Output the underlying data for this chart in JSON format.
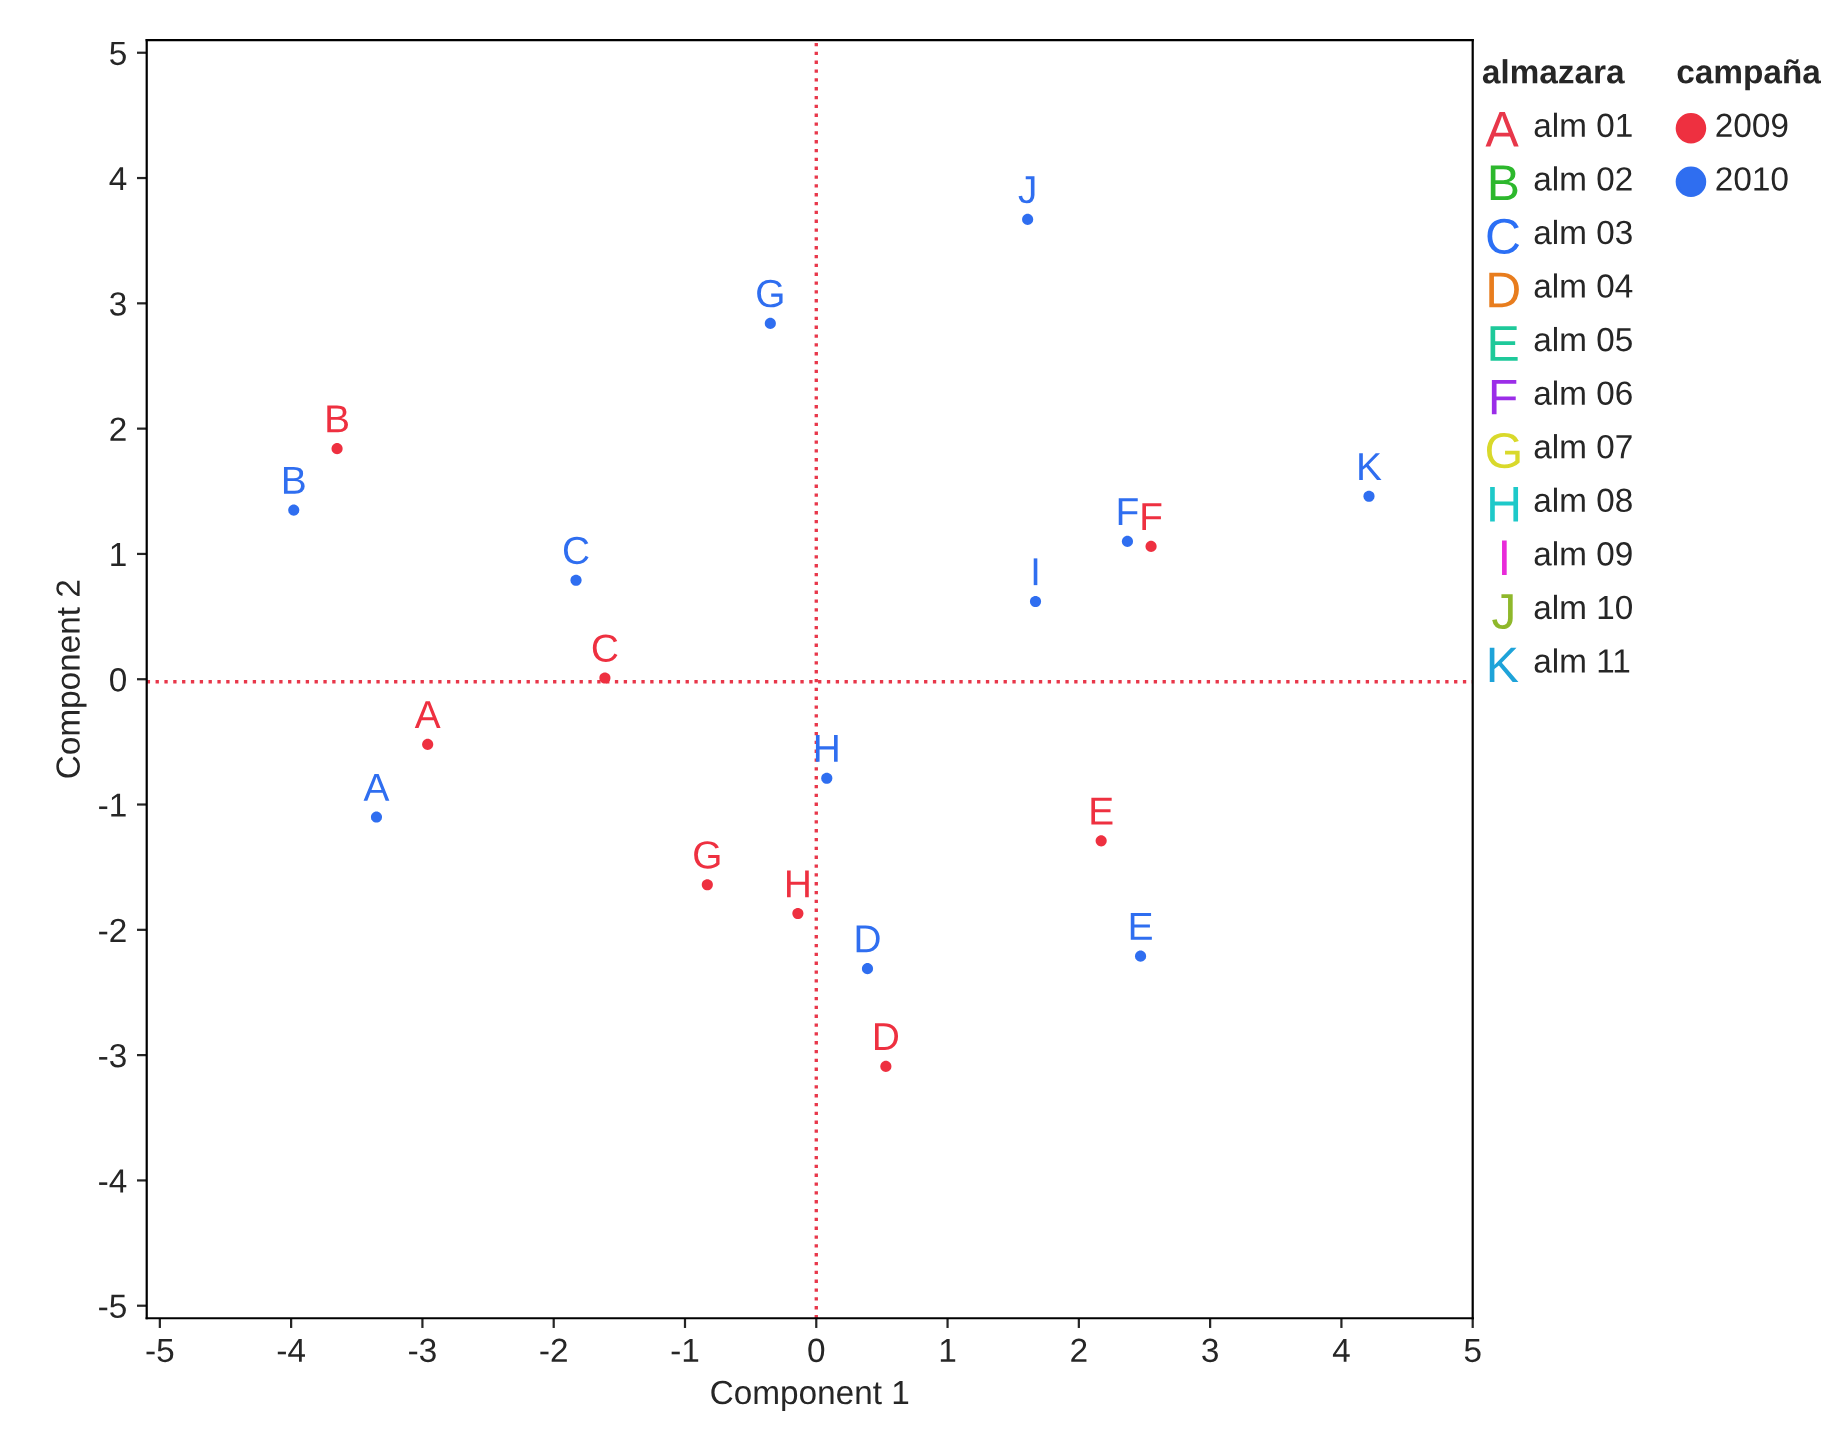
{
  "chart_data": {
    "type": "scatter",
    "xlabel": "Component 1",
    "ylabel": "Component 2",
    "xlim": [
      -5.1,
      5
    ],
    "ylim": [
      -5.1,
      5.1
    ],
    "xticks": [
      -5,
      -4,
      -3,
      -2,
      -1,
      0,
      1,
      2,
      3,
      4,
      5
    ],
    "yticks": [
      -5,
      -4,
      -3,
      -2,
      -1,
      0,
      1,
      2,
      3,
      4,
      5
    ],
    "grid": false,
    "legend": "right",
    "marker": "circle",
    "legend_title": [
      "almazara",
      "campaña"
    ],
    "series": [
      {
        "name": "2009",
        "color": "#ee3040",
        "x": [
          -2.96,
          -3.65,
          -1.61,
          0.53,
          2.17,
          2.55,
          -0.83,
          -0.14
        ],
        "values": [
          -0.52,
          1.84,
          0.01,
          -3.09,
          -1.29,
          1.06,
          -1.64,
          -1.87
        ],
        "value_labels": [
          "A",
          "B",
          "C",
          "D",
          "E",
          "F",
          "G",
          "H"
        ]
      },
      {
        "name": "2010",
        "color": "#2f6ef0",
        "x": [
          -3.35,
          -3.98,
          -1.83,
          0.39,
          2.47,
          2.37,
          -0.35,
          0.08,
          1.67,
          1.61,
          4.21
        ],
        "values": [
          -1.1,
          1.35,
          0.79,
          -2.31,
          -2.21,
          1.1,
          2.84,
          -0.79,
          0.62,
          3.67,
          1.46
        ],
        "value_labels": [
          "A",
          "B",
          "C",
          "D",
          "E",
          "F",
          "G",
          "H",
          "I",
          "J",
          "K"
        ]
      },
      {
        "name": "alm 01",
        "color": "#e8374a"
      },
      {
        "name": "alm 02",
        "color": "#2db82d"
      },
      {
        "name": "alm 03",
        "color": "#2b6ff5"
      },
      {
        "name": "alm 04",
        "color": "#e87d1e"
      },
      {
        "name": "alm 05",
        "color": "#1ec99a"
      },
      {
        "name": "alm 06",
        "color": "#9b2de8"
      },
      {
        "name": "alm 07",
        "color": "#d9d92b"
      },
      {
        "name": "alm 08",
        "color": "#1ec9c9"
      },
      {
        "name": "alm 09",
        "color": "#e82bd9"
      },
      {
        "name": "alm 10",
        "color": "#8fb82b"
      },
      {
        "name": "alm 11",
        "color": "#1ea3d9"
      }
    ],
    "ref_lines": [
      {
        "axis": "x",
        "value": 0,
        "color": "#e8374a",
        "line_style": "dotted"
      },
      {
        "axis": "y",
        "value": -0.02,
        "color": "#e8374a",
        "line_style": "dotted"
      }
    ]
  }
}
